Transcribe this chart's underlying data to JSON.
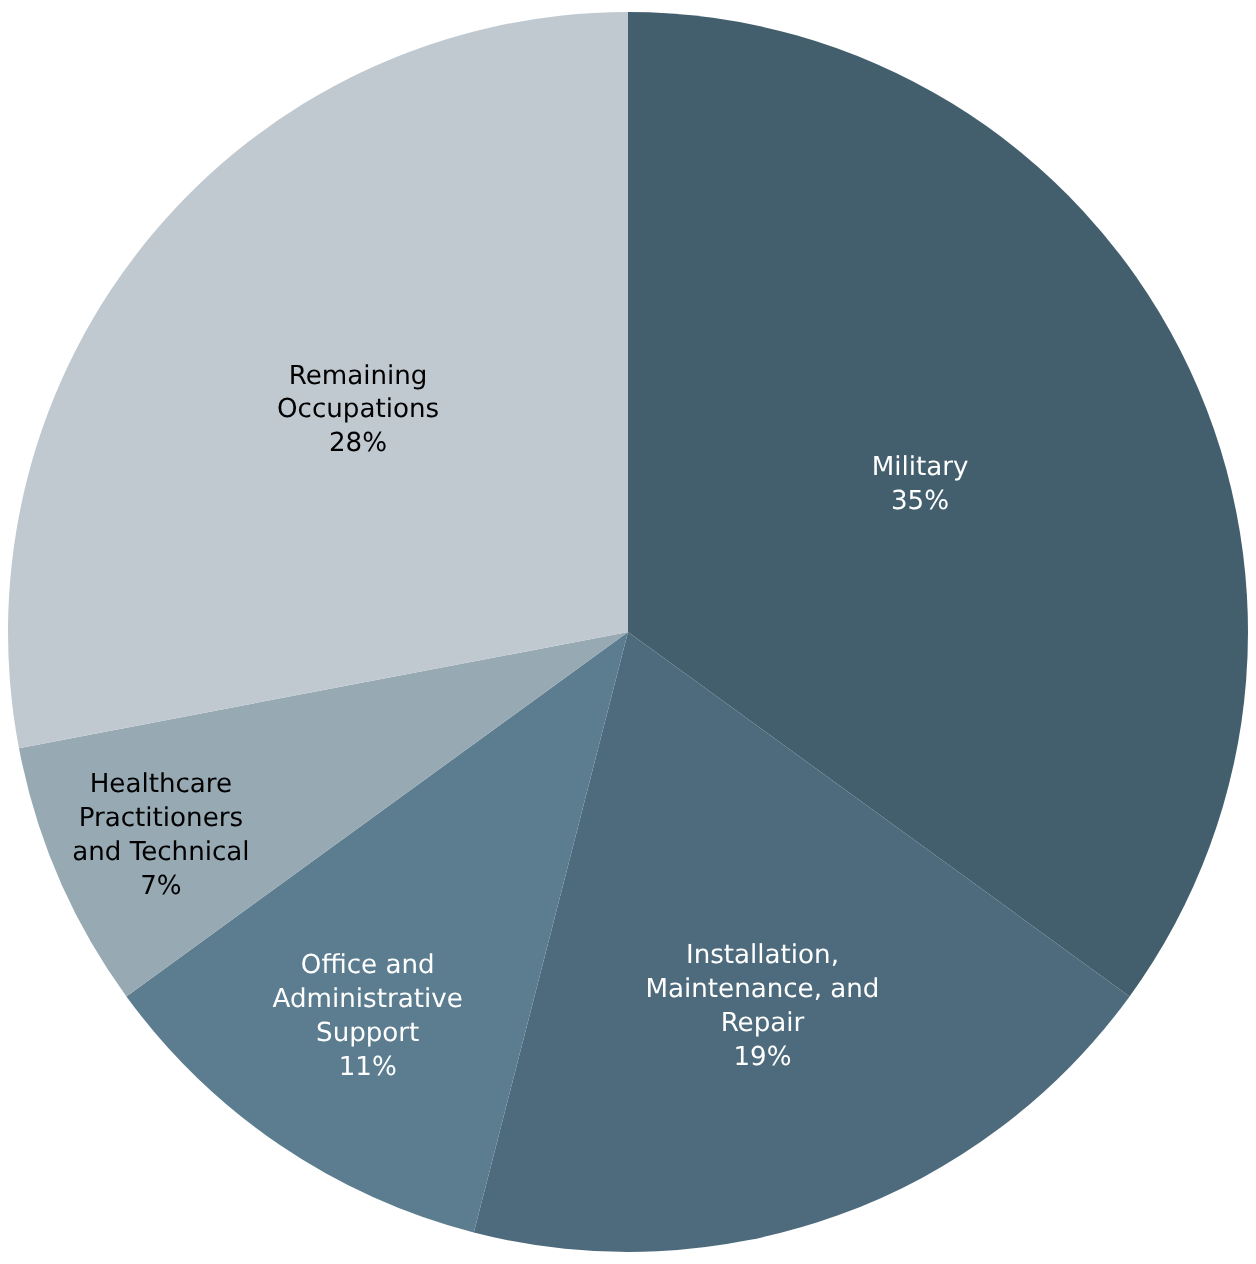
{
  "chart_data": {
    "type": "pie",
    "categories": [
      "Military",
      "Installation, Maintenance, and Repair",
      "Office and Administrative Support",
      "Healthcare Practitioners and Technical",
      "Remaining Occupations"
    ],
    "values": [
      35,
      19,
      11,
      7,
      28
    ],
    "value_labels": [
      "35%",
      "19%",
      "11%",
      "7%",
      "28%"
    ],
    "colors": [
      "#435f6e",
      "#4d6b7c",
      "#5c7d8f",
      "#97a9b3",
      "#c0c9d0"
    ],
    "legend": false
  }
}
